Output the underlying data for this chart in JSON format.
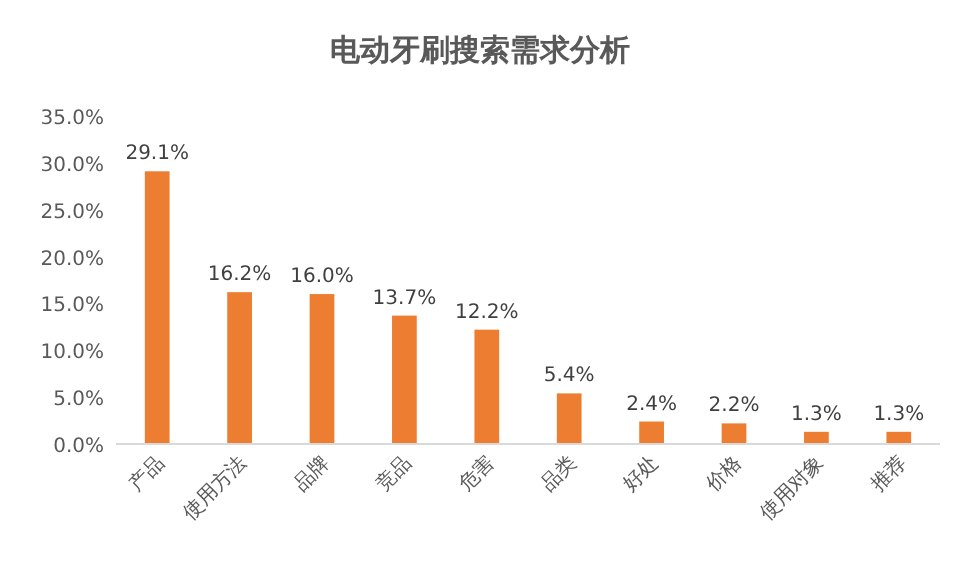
{
  "chart_data": {
    "type": "bar",
    "title": "电动牙刷搜索需求分析",
    "categories": [
      "产品",
      "使用方法",
      "品牌",
      "竞品",
      "危害",
      "品类",
      "好处",
      "价格",
      "使用对象",
      "推荐"
    ],
    "values": [
      29.1,
      16.2,
      16.0,
      13.7,
      12.2,
      5.4,
      2.4,
      2.2,
      1.3,
      1.3
    ],
    "value_labels": [
      "29.1%",
      "16.2%",
      "16.0%",
      "13.7%",
      "12.2%",
      "5.4%",
      "2.4%",
      "2.2%",
      "1.3%",
      "1.3%"
    ],
    "color": "#ed7d31",
    "ylim": [
      0,
      35
    ],
    "yticks": [
      {
        "value": 0,
        "label": "0.0%"
      },
      {
        "value": 5,
        "label": "5.0%"
      },
      {
        "value": 10,
        "label": "10.0%"
      },
      {
        "value": 15,
        "label": "15.0%"
      },
      {
        "value": 20,
        "label": "20.0%"
      },
      {
        "value": 25,
        "label": "25.0%"
      },
      {
        "value": 30,
        "label": "30.0%"
      },
      {
        "value": 35,
        "label": "35.0%"
      }
    ],
    "grid": false
  }
}
